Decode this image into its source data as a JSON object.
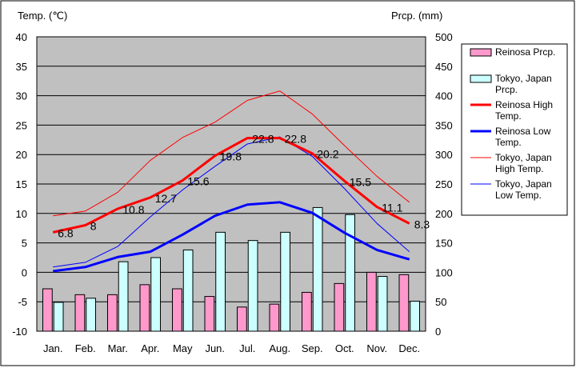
{
  "chart_data": {
    "type": "bar+line",
    "categories": [
      "Jan.",
      "Feb.",
      "Mar.",
      "Apr.",
      "May",
      "Jun.",
      "Jul.",
      "Aug.",
      "Sep.",
      "Oct.",
      "Nov.",
      "Dec."
    ],
    "left_axis_label": "Temp. (℃)",
    "right_axis_label": "Prcp. (mm)",
    "temp_range": [
      -10,
      40
    ],
    "temp_ticks": [
      40,
      35,
      30,
      25,
      20,
      15,
      10,
      5,
      0,
      -5,
      -10
    ],
    "prcp_range": [
      0,
      500
    ],
    "prcp_ticks": [
      500,
      450,
      400,
      350,
      300,
      250,
      200,
      150,
      100,
      50,
      0
    ],
    "plot_background": "#c0c0c0",
    "grid": true,
    "legend_position": "right",
    "bar_series": [
      {
        "name": "Reinosa Prcp.",
        "color": "#ff99cc",
        "values": [
          72,
          62,
          62,
          79,
          72,
          59,
          41,
          46,
          66,
          81,
          100,
          96
        ]
      },
      {
        "name": "Tokyo, Japan Prcp.",
        "color": "#ccffff",
        "values": [
          49,
          56,
          118,
          125,
          138,
          168,
          154,
          168,
          210,
          198,
          93,
          51
        ]
      }
    ],
    "line_series": [
      {
        "name": "Reinosa High Temp.",
        "color": "#ff0000",
        "thick": true,
        "labeled": true,
        "values": [
          6.8,
          8.0,
          10.8,
          12.7,
          15.6,
          19.8,
          22.8,
          22.8,
          20.2,
          15.5,
          11.1,
          8.3
        ],
        "labels": [
          "6.8",
          "8",
          "10.8",
          "12.7",
          "15.6",
          "19.8",
          "22.8",
          "22.8",
          "20.2",
          "15.5",
          "11.1",
          "8.3"
        ]
      },
      {
        "name": "Reinosa Low Temp.",
        "color": "#0000ff",
        "thick": true,
        "labeled": false,
        "values": [
          0.2,
          0.9,
          2.6,
          3.5,
          6.4,
          9.6,
          11.5,
          11.9,
          10.1,
          6.7,
          3.8,
          2.2
        ]
      },
      {
        "name": "Tokyo, Japan High Temp.",
        "color": "#ff0000",
        "thick": false,
        "labeled": false,
        "values": [
          9.6,
          10.4,
          13.6,
          19.0,
          22.9,
          25.5,
          29.2,
          30.8,
          26.9,
          21.5,
          16.3,
          11.9
        ]
      },
      {
        "name": "Tokyo, Japan Low Temp.",
        "color": "#0000ff",
        "thick": false,
        "labeled": false,
        "values": [
          0.9,
          1.7,
          4.4,
          9.4,
          14.0,
          18.0,
          21.8,
          23.0,
          19.7,
          14.2,
          8.3,
          3.5
        ]
      }
    ],
    "legend_entries": [
      {
        "lines": [
          "Reinosa Prcp."
        ],
        "kind": "bar",
        "color": "#ff99cc"
      },
      {
        "lines": [
          "Tokyo, Japan",
          "Prcp."
        ],
        "kind": "bar",
        "color": "#ccffff"
      },
      {
        "lines": [
          "Reinosa High",
          "Temp."
        ],
        "kind": "line",
        "color": "#ff0000",
        "thick": true
      },
      {
        "lines": [
          "Reinosa Low",
          "Temp."
        ],
        "kind": "line",
        "color": "#0000ff",
        "thick": true
      },
      {
        "lines": [
          "Tokyo, Japan",
          "High Temp."
        ],
        "kind": "line",
        "color": "#ff0000",
        "thick": false
      },
      {
        "lines": [
          "Tokyo, Japan",
          "Low Temp."
        ],
        "kind": "line",
        "color": "#0000ff",
        "thick": false
      }
    ]
  }
}
